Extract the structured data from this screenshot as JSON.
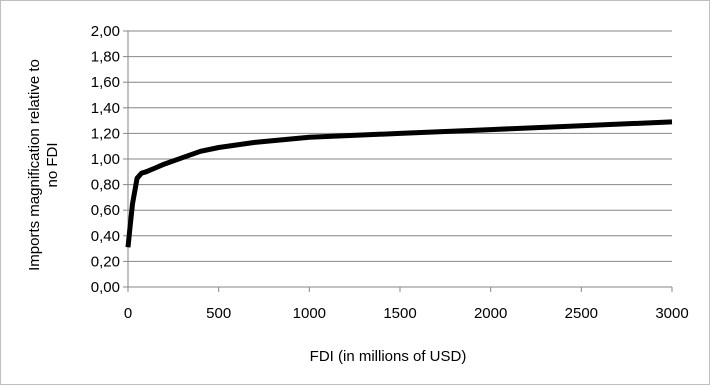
{
  "chart_data": {
    "type": "line",
    "title": "",
    "xlabel": "FDI (in millions of USD)",
    "ylabel_lines": [
      "Imports  magnification relative to",
      "no FDI"
    ],
    "xlim": [
      0,
      3000
    ],
    "ylim": [
      0,
      2
    ],
    "x_ticks": [
      "0",
      "500",
      "1000",
      "1500",
      "2000",
      "2500",
      "3000"
    ],
    "y_ticks": [
      "0,00",
      "0,20",
      "0,40",
      "0,60",
      "0,80",
      "1,00",
      "1,20",
      "1,40",
      "1,60",
      "1,80",
      "2,00"
    ],
    "grid": "horizontal",
    "legend": "none",
    "series": [
      {
        "color": "#000000",
        "x": [
          0,
          10,
          25,
          50,
          75,
          100,
          150,
          200,
          300,
          400,
          500,
          700,
          1000,
          1500,
          2000,
          2500,
          3000
        ],
        "y": [
          0.31,
          0.45,
          0.65,
          0.85,
          0.89,
          0.9,
          0.93,
          0.96,
          1.01,
          1.06,
          1.09,
          1.13,
          1.17,
          1.2,
          1.23,
          1.26,
          1.29
        ]
      }
    ]
  }
}
